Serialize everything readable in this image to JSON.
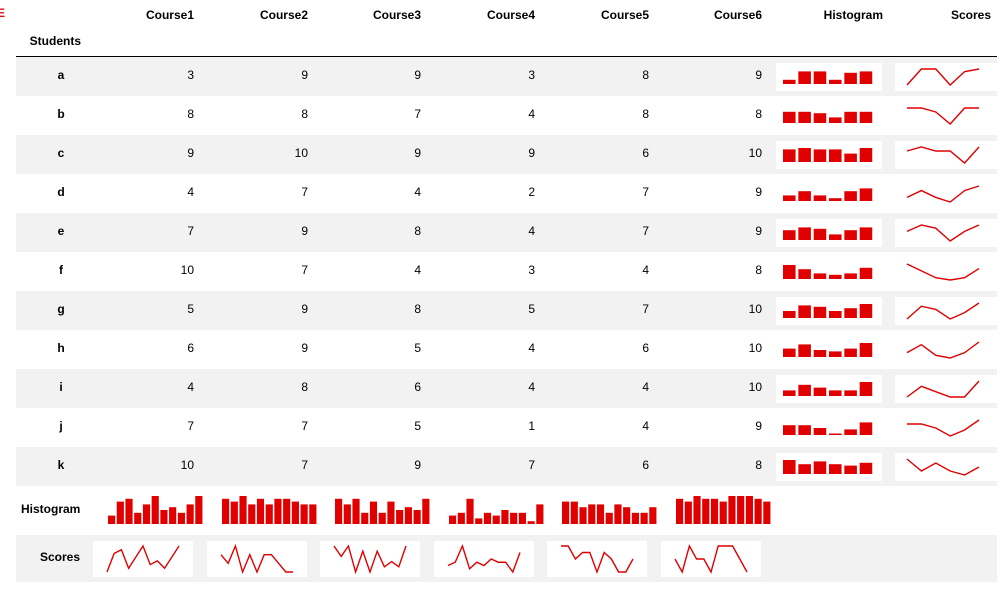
{
  "corner_mark": "E",
  "index_header": "Students",
  "columns": [
    "Course1",
    "Course2",
    "Course3",
    "Course4",
    "Course5",
    "Course6",
    "Histogram",
    "Scores"
  ],
  "accent_color": "#e00000",
  "rows": [
    {
      "label": "a",
      "scores": [
        3,
        9,
        9,
        3,
        8,
        9
      ]
    },
    {
      "label": "b",
      "scores": [
        8,
        8,
        7,
        4,
        8,
        8
      ]
    },
    {
      "label": "c",
      "scores": [
        9,
        10,
        9,
        9,
        6,
        10
      ]
    },
    {
      "label": "d",
      "scores": [
        4,
        7,
        4,
        2,
        7,
        9
      ]
    },
    {
      "label": "e",
      "scores": [
        7,
        9,
        8,
        4,
        7,
        9
      ]
    },
    {
      "label": "f",
      "scores": [
        10,
        7,
        4,
        3,
        4,
        8
      ]
    },
    {
      "label": "g",
      "scores": [
        5,
        9,
        8,
        5,
        7,
        10
      ]
    },
    {
      "label": "h",
      "scores": [
        6,
        9,
        5,
        4,
        6,
        10
      ]
    },
    {
      "label": "i",
      "scores": [
        4,
        8,
        6,
        4,
        4,
        10
      ]
    },
    {
      "label": "j",
      "scores": [
        7,
        7,
        5,
        1,
        4,
        9
      ]
    },
    {
      "label": "k",
      "scores": [
        10,
        7,
        9,
        7,
        6,
        8
      ]
    }
  ],
  "summary": {
    "histogram_label": "Histogram",
    "scores_label": "Scores"
  }
}
